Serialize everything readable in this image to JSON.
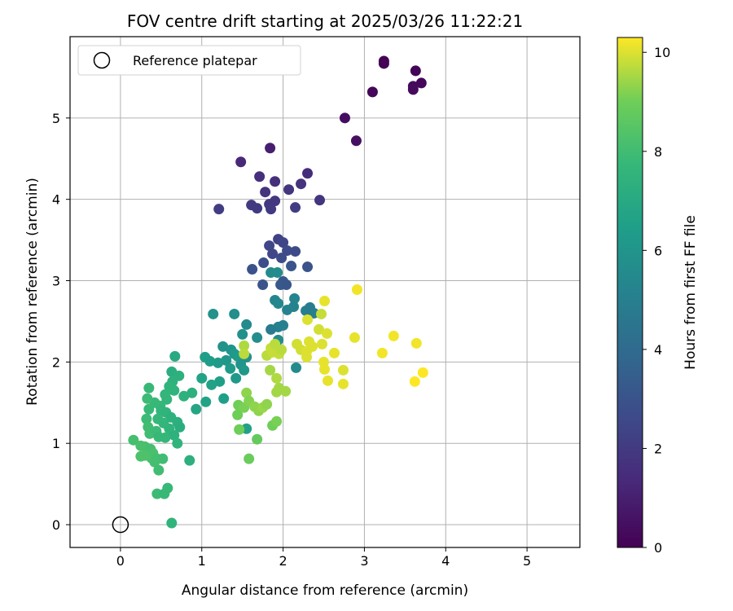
{
  "chart_data": {
    "type": "scatter",
    "title": "FOV centre drift starting at 2025/03/26 11:22:21",
    "xlabel": "Angular distance from reference (arcmin)",
    "ylabel": "Rotation from reference (arcmin)",
    "xlim": [
      -0.62,
      5.65
    ],
    "ylim": [
      -0.28,
      6.0
    ],
    "xticks": [
      0,
      1,
      2,
      3,
      4,
      5
    ],
    "yticks": [
      0,
      1,
      2,
      3,
      4,
      5
    ],
    "grid": true,
    "legend": {
      "position": "top-left",
      "entries": [
        "Reference platepar"
      ]
    },
    "reference_point": {
      "x": 0,
      "y": 0
    },
    "colorbar": {
      "label": "Hours from first FF file",
      "range": [
        0,
        10.3
      ],
      "ticks": [
        0,
        2,
        4,
        6,
        8,
        10
      ],
      "colormap": "viridis"
    },
    "points": [
      {
        "x": 3.24,
        "y": 5.7,
        "c": 0.05
      },
      {
        "x": 3.24,
        "y": 5.67,
        "c": 0.05
      },
      {
        "x": 3.1,
        "y": 5.32,
        "c": 0.15
      },
      {
        "x": 3.63,
        "y": 5.58,
        "c": 0.1
      },
      {
        "x": 3.7,
        "y": 5.43,
        "c": 0.2
      },
      {
        "x": 3.6,
        "y": 5.39,
        "c": 0.3
      },
      {
        "x": 3.6,
        "y": 5.35,
        "c": 0.3
      },
      {
        "x": 2.76,
        "y": 5.0,
        "c": 0.4
      },
      {
        "x": 2.9,
        "y": 4.72,
        "c": 0.5
      },
      {
        "x": 1.84,
        "y": 4.63,
        "c": 1.0
      },
      {
        "x": 1.48,
        "y": 4.46,
        "c": 1.3
      },
      {
        "x": 2.3,
        "y": 4.32,
        "c": 1.5
      },
      {
        "x": 1.71,
        "y": 4.28,
        "c": 1.6
      },
      {
        "x": 1.9,
        "y": 4.22,
        "c": 1.6
      },
      {
        "x": 2.22,
        "y": 4.19,
        "c": 1.7
      },
      {
        "x": 2.07,
        "y": 4.12,
        "c": 1.8
      },
      {
        "x": 1.78,
        "y": 4.09,
        "c": 1.7
      },
      {
        "x": 2.45,
        "y": 3.99,
        "c": 1.8
      },
      {
        "x": 1.9,
        "y": 3.98,
        "c": 1.9
      },
      {
        "x": 1.61,
        "y": 3.93,
        "c": 2.0
      },
      {
        "x": 1.83,
        "y": 3.94,
        "c": 1.9
      },
      {
        "x": 1.68,
        "y": 3.89,
        "c": 2.0
      },
      {
        "x": 1.85,
        "y": 3.88,
        "c": 2.0
      },
      {
        "x": 2.15,
        "y": 3.9,
        "c": 2.1
      },
      {
        "x": 1.21,
        "y": 3.88,
        "c": 2.1
      },
      {
        "x": 1.94,
        "y": 3.51,
        "c": 2.3
      },
      {
        "x": 2.0,
        "y": 3.47,
        "c": 2.4
      },
      {
        "x": 1.83,
        "y": 3.43,
        "c": 2.5
      },
      {
        "x": 2.05,
        "y": 3.37,
        "c": 2.6
      },
      {
        "x": 2.15,
        "y": 3.36,
        "c": 2.7
      },
      {
        "x": 1.87,
        "y": 3.33,
        "c": 2.5
      },
      {
        "x": 1.98,
        "y": 3.28,
        "c": 2.7
      },
      {
        "x": 1.76,
        "y": 3.22,
        "c": 2.8
      },
      {
        "x": 2.3,
        "y": 3.17,
        "c": 3.0
      },
      {
        "x": 2.1,
        "y": 3.18,
        "c": 3.0
      },
      {
        "x": 1.62,
        "y": 3.14,
        "c": 2.9
      },
      {
        "x": 1.85,
        "y": 3.1,
        "c": 5.5
      },
      {
        "x": 1.93,
        "y": 3.1,
        "c": 5.6
      },
      {
        "x": 2.0,
        "y": 2.99,
        "c": 3.1
      },
      {
        "x": 1.97,
        "y": 2.95,
        "c": 3.2
      },
      {
        "x": 2.04,
        "y": 2.95,
        "c": 3.1
      },
      {
        "x": 1.75,
        "y": 2.95,
        "c": 3.0
      },
      {
        "x": 1.9,
        "y": 2.76,
        "c": 5.3
      },
      {
        "x": 1.94,
        "y": 2.72,
        "c": 5.4
      },
      {
        "x": 2.14,
        "y": 2.78,
        "c": 5.3
      },
      {
        "x": 2.05,
        "y": 2.64,
        "c": 5.2
      },
      {
        "x": 2.13,
        "y": 2.68,
        "c": 5.2
      },
      {
        "x": 2.28,
        "y": 2.63,
        "c": 5.0
      },
      {
        "x": 2.33,
        "y": 2.67,
        "c": 4.8
      },
      {
        "x": 2.38,
        "y": 2.6,
        "c": 4.9
      },
      {
        "x": 2.0,
        "y": 2.45,
        "c": 5.1
      },
      {
        "x": 1.94,
        "y": 2.43,
        "c": 5.1
      },
      {
        "x": 1.85,
        "y": 2.4,
        "c": 4.8
      },
      {
        "x": 1.14,
        "y": 2.59,
        "c": 5.9
      },
      {
        "x": 1.4,
        "y": 2.59,
        "c": 5.7
      },
      {
        "x": 1.55,
        "y": 2.46,
        "c": 5.5
      },
      {
        "x": 1.5,
        "y": 2.34,
        "c": 5.8
      },
      {
        "x": 1.68,
        "y": 2.3,
        "c": 5.7
      },
      {
        "x": 1.94,
        "y": 2.27,
        "c": 5.6
      },
      {
        "x": 1.26,
        "y": 2.19,
        "c": 5.9
      },
      {
        "x": 1.36,
        "y": 2.15,
        "c": 6.0
      },
      {
        "x": 1.4,
        "y": 2.1,
        "c": 6.2
      },
      {
        "x": 1.44,
        "y": 2.07,
        "c": 6.3
      },
      {
        "x": 1.55,
        "y": 2.06,
        "c": 5.8
      },
      {
        "x": 1.3,
        "y": 2.02,
        "c": 6.1
      },
      {
        "x": 1.2,
        "y": 1.99,
        "c": 6.3
      },
      {
        "x": 1.04,
        "y": 2.06,
        "c": 6.5
      },
      {
        "x": 1.1,
        "y": 2.01,
        "c": 6.4
      },
      {
        "x": 1.48,
        "y": 1.97,
        "c": 6.0
      },
      {
        "x": 1.52,
        "y": 1.9,
        "c": 6.1
      },
      {
        "x": 1.42,
        "y": 1.8,
        "c": 6.2
      },
      {
        "x": 1.35,
        "y": 1.92,
        "c": 6.3
      },
      {
        "x": 1.22,
        "y": 1.76,
        "c": 6.5
      },
      {
        "x": 1.12,
        "y": 1.72,
        "c": 6.6
      },
      {
        "x": 1.0,
        "y": 1.8,
        "c": 6.7
      },
      {
        "x": 2.16,
        "y": 1.93,
        "c": 5.5
      },
      {
        "x": 1.27,
        "y": 1.55,
        "c": 6.5
      },
      {
        "x": 1.05,
        "y": 1.51,
        "c": 6.7
      },
      {
        "x": 0.93,
        "y": 1.42,
        "c": 6.8
      },
      {
        "x": 1.55,
        "y": 1.18,
        "c": 6.6
      },
      {
        "x": 0.67,
        "y": 2.07,
        "c": 7.0
      },
      {
        "x": 0.63,
        "y": 1.88,
        "c": 7.2
      },
      {
        "x": 0.72,
        "y": 1.83,
        "c": 7.3
      },
      {
        "x": 0.64,
        "y": 1.76,
        "c": 7.4
      },
      {
        "x": 0.6,
        "y": 1.7,
        "c": 7.5
      },
      {
        "x": 0.66,
        "y": 1.65,
        "c": 7.5
      },
      {
        "x": 0.78,
        "y": 1.58,
        "c": 7.4
      },
      {
        "x": 0.88,
        "y": 1.62,
        "c": 7.3
      },
      {
        "x": 0.55,
        "y": 1.6,
        "c": 7.6
      },
      {
        "x": 0.57,
        "y": 1.54,
        "c": 7.6
      },
      {
        "x": 0.49,
        "y": 1.46,
        "c": 7.7
      },
      {
        "x": 0.42,
        "y": 1.5,
        "c": 7.8
      },
      {
        "x": 0.35,
        "y": 1.68,
        "c": 7.8
      },
      {
        "x": 0.33,
        "y": 1.55,
        "c": 7.9
      },
      {
        "x": 0.35,
        "y": 1.42,
        "c": 7.8
      },
      {
        "x": 0.5,
        "y": 1.4,
        "c": 7.6
      },
      {
        "x": 0.56,
        "y": 1.38,
        "c": 7.5
      },
      {
        "x": 0.62,
        "y": 1.32,
        "c": 7.4
      },
      {
        "x": 0.7,
        "y": 1.26,
        "c": 7.3
      },
      {
        "x": 0.73,
        "y": 1.2,
        "c": 7.2
      },
      {
        "x": 0.6,
        "y": 1.18,
        "c": 7.5
      },
      {
        "x": 0.66,
        "y": 1.1,
        "c": 7.4
      },
      {
        "x": 0.7,
        "y": 1.0,
        "c": 7.5
      },
      {
        "x": 0.46,
        "y": 1.3,
        "c": 7.7
      },
      {
        "x": 0.53,
        "y": 1.25,
        "c": 7.6
      },
      {
        "x": 0.32,
        "y": 1.3,
        "c": 7.9
      },
      {
        "x": 0.34,
        "y": 1.2,
        "c": 8.0
      },
      {
        "x": 0.36,
        "y": 1.12,
        "c": 8.0
      },
      {
        "x": 0.44,
        "y": 1.15,
        "c": 7.9
      },
      {
        "x": 0.47,
        "y": 1.08,
        "c": 7.8
      },
      {
        "x": 0.55,
        "y": 1.07,
        "c": 7.7
      },
      {
        "x": 0.85,
        "y": 0.79,
        "c": 7.3
      },
      {
        "x": 0.16,
        "y": 1.04,
        "c": 8.1
      },
      {
        "x": 0.25,
        "y": 0.97,
        "c": 8.2
      },
      {
        "x": 0.3,
        "y": 0.96,
        "c": 8.2
      },
      {
        "x": 0.37,
        "y": 0.93,
        "c": 8.1
      },
      {
        "x": 0.4,
        "y": 0.88,
        "c": 8.2
      },
      {
        "x": 0.38,
        "y": 0.82,
        "c": 8.2
      },
      {
        "x": 0.3,
        "y": 0.85,
        "c": 8.3
      },
      {
        "x": 0.25,
        "y": 0.84,
        "c": 8.3
      },
      {
        "x": 0.45,
        "y": 0.81,
        "c": 8.1
      },
      {
        "x": 0.52,
        "y": 0.81,
        "c": 8.0
      },
      {
        "x": 0.42,
        "y": 0.77,
        "c": 8.1
      },
      {
        "x": 0.47,
        "y": 0.67,
        "c": 8.0
      },
      {
        "x": 0.58,
        "y": 0.45,
        "c": 7.8
      },
      {
        "x": 0.45,
        "y": 0.38,
        "c": 7.9
      },
      {
        "x": 0.54,
        "y": 0.38,
        "c": 7.8
      },
      {
        "x": 0.63,
        "y": 0.02,
        "c": 7.5
      },
      {
        "x": 1.45,
        "y": 1.47,
        "c": 9.0
      },
      {
        "x": 1.44,
        "y": 1.35,
        "c": 9.0
      },
      {
        "x": 1.52,
        "y": 1.44,
        "c": 9.1
      },
      {
        "x": 1.55,
        "y": 1.62,
        "c": 9.3
      },
      {
        "x": 1.58,
        "y": 1.52,
        "c": 9.2
      },
      {
        "x": 1.65,
        "y": 1.45,
        "c": 9.3
      },
      {
        "x": 1.7,
        "y": 1.4,
        "c": 9.3
      },
      {
        "x": 1.75,
        "y": 1.44,
        "c": 9.4
      },
      {
        "x": 1.8,
        "y": 1.48,
        "c": 9.3
      },
      {
        "x": 1.46,
        "y": 1.17,
        "c": 9.0
      },
      {
        "x": 1.58,
        "y": 0.81,
        "c": 8.9
      },
      {
        "x": 1.68,
        "y": 1.05,
        "c": 8.8
      },
      {
        "x": 1.87,
        "y": 1.22,
        "c": 9.0
      },
      {
        "x": 1.92,
        "y": 1.27,
        "c": 9.1
      },
      {
        "x": 1.92,
        "y": 1.63,
        "c": 9.5
      },
      {
        "x": 1.95,
        "y": 1.68,
        "c": 9.5
      },
      {
        "x": 2.03,
        "y": 1.64,
        "c": 9.5
      },
      {
        "x": 1.92,
        "y": 1.8,
        "c": 9.6
      },
      {
        "x": 1.84,
        "y": 1.9,
        "c": 9.5
      },
      {
        "x": 1.52,
        "y": 2.2,
        "c": 9.6
      },
      {
        "x": 1.52,
        "y": 2.1,
        "c": 9.7
      },
      {
        "x": 1.8,
        "y": 2.08,
        "c": 9.7
      },
      {
        "x": 1.85,
        "y": 2.17,
        "c": 9.8
      },
      {
        "x": 1.87,
        "y": 2.12,
        "c": 9.8
      },
      {
        "x": 1.9,
        "y": 2.22,
        "c": 9.7
      },
      {
        "x": 1.95,
        "y": 2.1,
        "c": 9.8
      },
      {
        "x": 1.98,
        "y": 2.15,
        "c": 9.7
      },
      {
        "x": 2.17,
        "y": 2.22,
        "c": 9.9
      },
      {
        "x": 2.22,
        "y": 2.15,
        "c": 9.9
      },
      {
        "x": 2.29,
        "y": 2.13,
        "c": 10.0
      },
      {
        "x": 2.32,
        "y": 2.25,
        "c": 10.0
      },
      {
        "x": 2.36,
        "y": 2.19,
        "c": 10.0
      },
      {
        "x": 2.29,
        "y": 2.06,
        "c": 10.0
      },
      {
        "x": 2.3,
        "y": 2.52,
        "c": 10.0
      },
      {
        "x": 2.44,
        "y": 2.4,
        "c": 9.9
      },
      {
        "x": 2.47,
        "y": 2.59,
        "c": 9.8
      },
      {
        "x": 2.51,
        "y": 2.75,
        "c": 10.1
      },
      {
        "x": 2.54,
        "y": 2.35,
        "c": 10.0
      },
      {
        "x": 2.48,
        "y": 2.22,
        "c": 10.0
      },
      {
        "x": 2.5,
        "y": 2.0,
        "c": 10.1
      },
      {
        "x": 2.51,
        "y": 1.91,
        "c": 10.1
      },
      {
        "x": 2.55,
        "y": 1.77,
        "c": 10.1
      },
      {
        "x": 2.63,
        "y": 2.11,
        "c": 10.1
      },
      {
        "x": 2.74,
        "y": 1.9,
        "c": 10.0
      },
      {
        "x": 2.74,
        "y": 1.73,
        "c": 10.1
      },
      {
        "x": 2.88,
        "y": 2.3,
        "c": 10.1
      },
      {
        "x": 2.91,
        "y": 2.89,
        "c": 10.2
      },
      {
        "x": 3.22,
        "y": 2.11,
        "c": 10.2
      },
      {
        "x": 3.36,
        "y": 2.32,
        "c": 10.2
      },
      {
        "x": 3.64,
        "y": 2.23,
        "c": 10.2
      },
      {
        "x": 3.62,
        "y": 1.76,
        "c": 10.3
      },
      {
        "x": 3.72,
        "y": 1.87,
        "c": 10.3
      }
    ]
  }
}
